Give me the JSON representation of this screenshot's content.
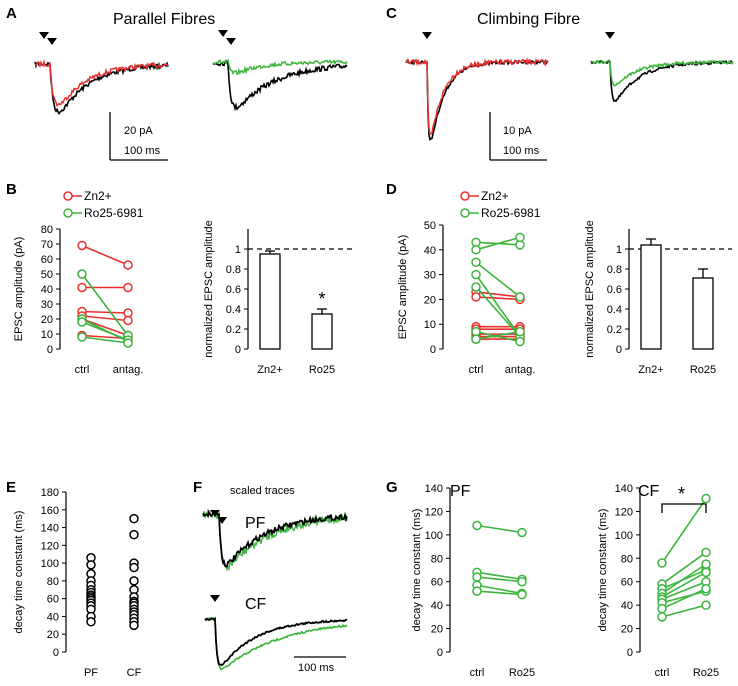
{
  "colors": {
    "zn": "#e8312f",
    "ro": "#3cb53c",
    "ctrl": "#000000"
  },
  "panels": {
    "A": {
      "label": "A",
      "title": "Parallel Fibres",
      "scale_pa": "20 pA",
      "scale_ms": "100 ms"
    },
    "C": {
      "label": "C",
      "title": "Climbing Fibre",
      "scale_pa": "10 pA",
      "scale_ms": "100 ms"
    },
    "B": {
      "label": "B",
      "legend": [
        "Zn2+",
        "Ro25-6981"
      ]
    },
    "D": {
      "label": "D",
      "legend": [
        "Zn2+",
        "Ro25-6981"
      ]
    },
    "E": {
      "label": "E"
    },
    "F": {
      "label": "F",
      "subtitle": "scaled traces",
      "pf": "PF",
      "cf": "CF",
      "scale_ms": "100 ms"
    },
    "G": {
      "label": "G",
      "pf_title": "PF",
      "cf_title": "CF",
      "sig": "*"
    }
  },
  "chart_data": [
    {
      "id": "B-pairs",
      "type": "scatter",
      "ylabel": "EPSC amplitude (pA)",
      "ylim": [
        0,
        80
      ],
      "yticks": [
        0,
        10,
        20,
        30,
        40,
        50,
        60,
        70,
        80
      ],
      "categories": [
        "ctrl",
        "antag."
      ],
      "series": [
        {
          "name": "Zn2+",
          "pairs": [
            [
              69,
              56
            ],
            [
              41,
              41
            ],
            [
              25,
              24
            ],
            [
              22,
              19
            ],
            [
              20,
              9
            ],
            [
              9,
              7
            ]
          ]
        },
        {
          "name": "Ro25-6981",
          "pairs": [
            [
              50,
              9
            ],
            [
              20,
              5
            ],
            [
              18,
              6
            ],
            [
              8,
              4
            ]
          ]
        }
      ]
    },
    {
      "id": "B-bars",
      "type": "bar",
      "ylabel": "normalized EPSC amplitude",
      "ylim": [
        0,
        1.2
      ],
      "yticks": [
        0,
        0.2,
        0.4,
        0.6,
        0.8,
        1
      ],
      "categories": [
        "Zn2+",
        "Ro25"
      ],
      "values": [
        0.95,
        0.35
      ],
      "errors": [
        0.03,
        0.05
      ],
      "reference_line": 1,
      "annotations": [
        "",
        "*"
      ]
    },
    {
      "id": "D-pairs",
      "type": "scatter",
      "ylabel": "EPSC amplitude (pA)",
      "ylim": [
        0,
        50
      ],
      "yticks": [
        0,
        10,
        20,
        30,
        40,
        50
      ],
      "categories": [
        "ctrl",
        "antag."
      ],
      "series": [
        {
          "name": "Zn2+",
          "pairs": [
            [
              23,
              21
            ],
            [
              21,
              20
            ],
            [
              9,
              9
            ],
            [
              8,
              8
            ],
            [
              6,
              6
            ],
            [
              5,
              5
            ],
            [
              4,
              4
            ]
          ]
        },
        {
          "name": "Ro25-6981",
          "pairs": [
            [
              43,
              42
            ],
            [
              40,
              45
            ],
            [
              35,
              21
            ],
            [
              30,
              5
            ],
            [
              25,
              5
            ],
            [
              7,
              3
            ],
            [
              4,
              7
            ]
          ]
        }
      ]
    },
    {
      "id": "D-bars",
      "type": "bar",
      "ylabel": "normalized EPSC amplitude",
      "ylim": [
        0,
        1.2
      ],
      "yticks": [
        0,
        0.2,
        0.4,
        0.6,
        0.8,
        1
      ],
      "categories": [
        "Zn2+",
        "Ro25"
      ],
      "values": [
        1.04,
        0.71
      ],
      "errors": [
        0.06,
        0.09
      ],
      "reference_line": 1
    },
    {
      "id": "E-scatter",
      "type": "scatter",
      "ylabel": "decay time constant  (ms)",
      "ylim": [
        0,
        180
      ],
      "yticks": [
        0,
        20,
        40,
        60,
        80,
        100,
        120,
        140,
        160,
        180
      ],
      "categories": [
        "PF",
        "CF"
      ],
      "series": [
        {
          "name": "PF",
          "values": [
            106,
            98,
            88,
            80,
            75,
            70,
            67,
            64,
            62,
            60,
            58,
            55,
            52,
            48,
            40,
            34
          ]
        },
        {
          "name": "CF",
          "values": [
            150,
            132,
            100,
            95,
            80,
            70,
            62,
            57,
            55,
            52,
            48,
            45,
            42,
            38,
            34,
            30
          ]
        }
      ]
    },
    {
      "id": "G-PF",
      "type": "line",
      "ylabel": "decay time constant  (ms)",
      "ylim": [
        0,
        140
      ],
      "yticks": [
        0,
        20,
        40,
        60,
        80,
        100,
        120,
        140
      ],
      "categories": [
        "ctrl",
        "Ro25"
      ],
      "series": [
        {
          "name": "cells",
          "pairs": [
            [
              108,
              102
            ],
            [
              68,
              62
            ],
            [
              64,
              60
            ],
            [
              57,
              50
            ],
            [
              52,
              49
            ]
          ]
        }
      ]
    },
    {
      "id": "G-CF",
      "type": "line",
      "ylabel": "decay time constant  (ms)",
      "ylim": [
        0,
        140
      ],
      "yticks": [
        0,
        20,
        40,
        60,
        80,
        100,
        120,
        140
      ],
      "categories": [
        "ctrl",
        "Ro25"
      ],
      "series": [
        {
          "name": "cells",
          "pairs": [
            [
              76,
              131
            ],
            [
              58,
              85
            ],
            [
              54,
              70
            ],
            [
              50,
              75
            ],
            [
              47,
              68
            ],
            [
              45,
              60
            ],
            [
              42,
              52
            ],
            [
              37,
              54
            ],
            [
              30,
              40
            ]
          ]
        }
      ]
    }
  ]
}
